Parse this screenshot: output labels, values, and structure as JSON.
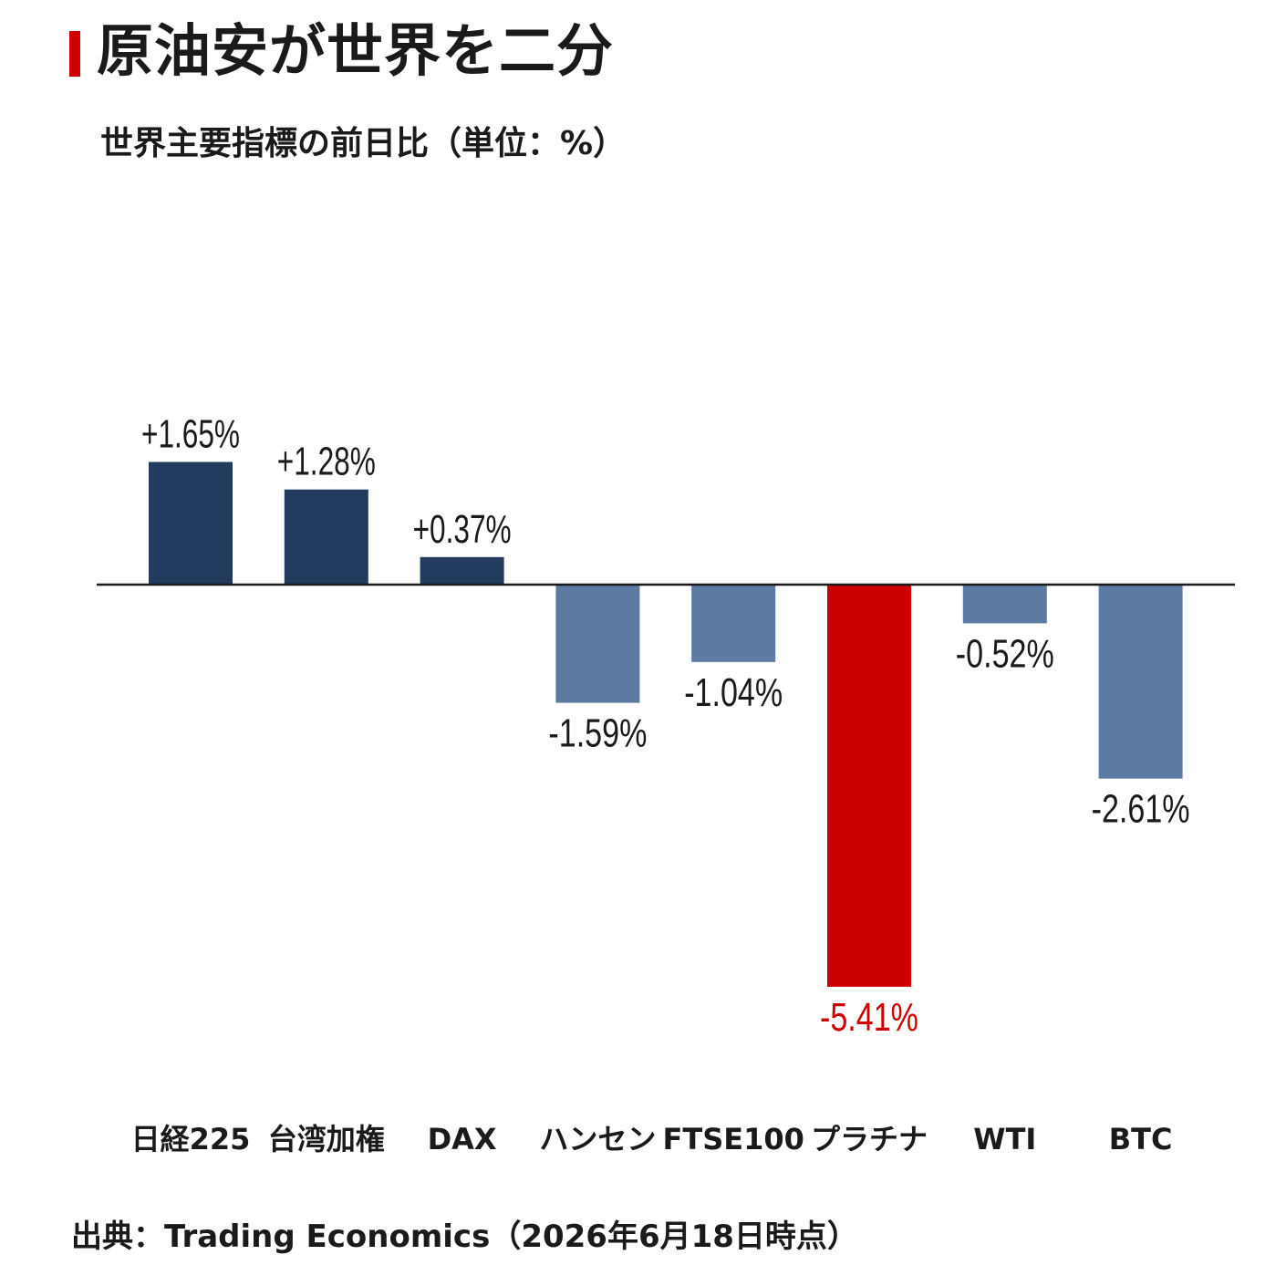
{
  "header": {
    "title": "原油安が世界を二分",
    "subtitle": "世界主要指標の前日比（単位：%）"
  },
  "footer": {
    "source": "出典：Trading Economics（2026年6月18日時点）"
  },
  "colors": {
    "positive": "#213a5e",
    "negative": "#5b7ba3",
    "highlight": "#cc0000",
    "title_marker": "#cc0000",
    "baseline": "#1a1a1a"
  },
  "chart_data": {
    "type": "bar",
    "title": "原油安が世界を二分",
    "subtitle": "世界主要指標の前日比（単位：%）",
    "categories": [
      "日経225",
      "台湾加権",
      "DAX",
      "ハンセン",
      "FTSE100",
      "プラチナ",
      "WTI",
      "BTC"
    ],
    "values": [
      1.65,
      1.28,
      0.37,
      -1.59,
      -1.04,
      -5.41,
      -0.52,
      -2.61
    ],
    "labels": [
      "+1.65%",
      "+1.28%",
      "+0.37%",
      "-1.59%",
      "-1.04%",
      "-5.41%",
      "-0.52%",
      "-2.61%"
    ],
    "highlight": [
      "プラチナ"
    ],
    "ylim": [
      -5.41,
      1.65
    ],
    "grid": false,
    "legend": "none"
  }
}
